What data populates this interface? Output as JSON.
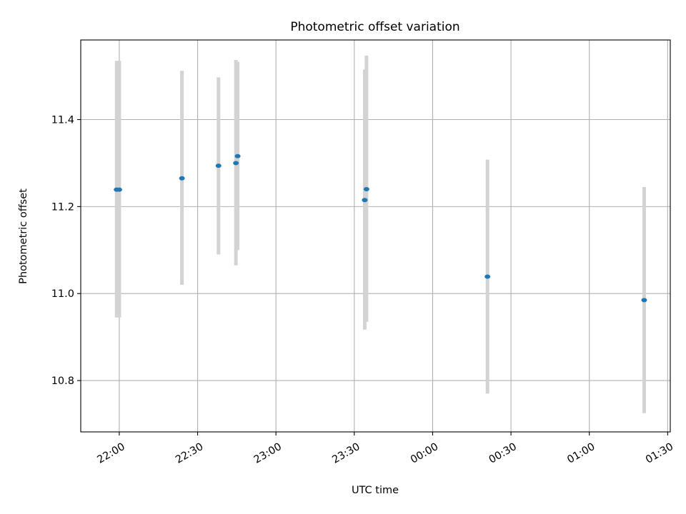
{
  "chart_data": {
    "type": "scatter",
    "title": "Photometric offset variation",
    "xlabel": "UTC time",
    "ylabel": "Photometric offset",
    "x_axis": {
      "kind": "time",
      "range": [
        "2000-01-01T21:45:15",
        "2000-01-02T01:31:00"
      ],
      "ticks": [
        {
          "t": "2000-01-01T22:00:00",
          "label": "22:00"
        },
        {
          "t": "2000-01-01T22:30:00",
          "label": "22:30"
        },
        {
          "t": "2000-01-01T23:00:00",
          "label": "23:00"
        },
        {
          "t": "2000-01-01T23:30:00",
          "label": "23:30"
        },
        {
          "t": "2000-01-02T00:00:00",
          "label": "00:00"
        },
        {
          "t": "2000-01-02T00:30:00",
          "label": "00:30"
        },
        {
          "t": "2000-01-02T01:00:00",
          "label": "01:00"
        },
        {
          "t": "2000-01-02T01:30:00",
          "label": "01:30"
        }
      ]
    },
    "y_axis": {
      "range": [
        10.682,
        11.583
      ],
      "ticks": [
        {
          "v": 10.8,
          "label": "10.8"
        },
        {
          "v": 11.0,
          "label": "11.0"
        },
        {
          "v": 11.2,
          "label": "11.2"
        },
        {
          "v": 11.4,
          "label": "11.4"
        }
      ]
    },
    "grid": true,
    "series": [
      {
        "marker_color": "#1f77b4",
        "errorbar_color": "#d3d3d3",
        "points": [
          {
            "x": "2000-01-01T21:59:00",
            "y": 11.239,
            "ylow": 10.945,
            "yhigh": 11.535
          },
          {
            "x": "2000-01-01T22:00:00",
            "y": 11.239,
            "ylow": 10.945,
            "yhigh": 11.535
          },
          {
            "x": "2000-01-01T22:24:00",
            "y": 11.265,
            "ylow": 11.02,
            "yhigh": 11.512
          },
          {
            "x": "2000-01-01T22:38:00",
            "y": 11.294,
            "ylow": 11.09,
            "yhigh": 11.497
          },
          {
            "x": "2000-01-01T22:44:40",
            "y": 11.3,
            "ylow": 11.065,
            "yhigh": 11.537
          },
          {
            "x": "2000-01-01T22:45:20",
            "y": 11.316,
            "ylow": 11.1,
            "yhigh": 11.533
          },
          {
            "x": "2000-01-01T23:34:00",
            "y": 11.215,
            "ylow": 10.917,
            "yhigh": 11.515
          },
          {
            "x": "2000-01-01T23:34:40",
            "y": 11.24,
            "ylow": 10.935,
            "yhigh": 11.547
          },
          {
            "x": "2000-01-02T00:21:00",
            "y": 11.039,
            "ylow": 10.77,
            "yhigh": 11.308
          },
          {
            "x": "2000-01-02T01:21:00",
            "y": 10.985,
            "ylow": 10.725,
            "yhigh": 11.245
          }
        ]
      }
    ]
  }
}
